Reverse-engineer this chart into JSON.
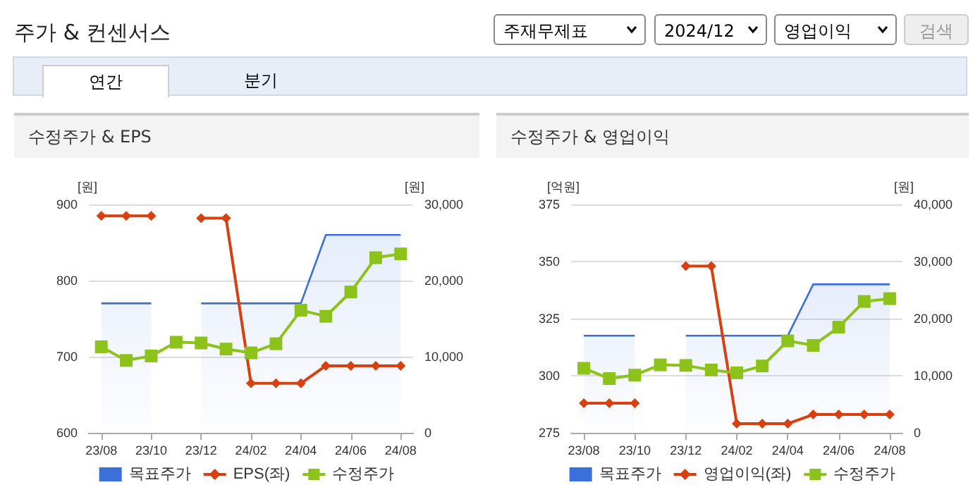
{
  "chart_data": [
    {
      "type": "other",
      "title": "주가 & 컨센서스",
      "annotations": [
        "주재무제표",
        "2024/12",
        "영업이익",
        "검색",
        "연간",
        "분기"
      ]
    },
    {
      "type": "line",
      "title": "수정주가 & EPS",
      "ylabel": "[원]",
      "y2label": "[원]",
      "categories": [
        "23/08",
        null,
        "23/10",
        null,
        "23/12",
        null,
        "24/02",
        null,
        "24/04",
        null,
        "24/06",
        null,
        "24/08"
      ],
      "series": [
        {
          "name": "목표주가",
          "type": "area",
          "axis": "y2",
          "color": "#3b6fd9",
          "marker": "none",
          "values": [
            17000,
            17000,
            17000,
            null,
            17000,
            17000,
            17000,
            17000,
            17000,
            26000,
            26000,
            26000,
            26000
          ]
        },
        {
          "name": "EPS(좌)",
          "type": "line",
          "axis": "y",
          "color": "#d9400f",
          "marker": "diamond",
          "values": [
            885,
            885,
            885,
            null,
            882,
            882,
            665,
            665,
            665,
            688,
            688,
            688,
            688
          ]
        },
        {
          "name": "수정주가",
          "type": "line",
          "axis": "y2",
          "color": "#8cc21a",
          "marker": "square",
          "values": [
            11300,
            9500,
            10100,
            11900,
            11800,
            11000,
            10500,
            11700,
            16100,
            15300,
            18500,
            23000,
            23500
          ]
        }
      ],
      "ylim": [
        600,
        900
      ],
      "yticks": [
        600,
        700,
        800,
        900
      ],
      "y2lim": [
        0,
        30000
      ],
      "y2ticks": [
        0,
        {
          "value": 10000,
          "label": "10,000"
        },
        {
          "value": 20000,
          "label": "20,000"
        },
        {
          "value": 30000,
          "label": "30,000"
        }
      ],
      "grid": "y",
      "legend": "bottom"
    },
    {
      "type": "line",
      "title": "수정주가 & 영업이익",
      "ylabel": "[억원]",
      "y2label": "[원]",
      "categories": [
        "23/08",
        null,
        "23/10",
        null,
        "23/12",
        null,
        "24/02",
        null,
        "24/04",
        null,
        "24/06",
        null,
        "24/08"
      ],
      "series": [
        {
          "name": "목표주가",
          "type": "area",
          "axis": "y2",
          "color": "#3b6fd9",
          "marker": "none",
          "values": [
            17000,
            17000,
            17000,
            null,
            17000,
            17000,
            17000,
            17000,
            17000,
            26000,
            26000,
            26000,
            26000
          ]
        },
        {
          "name": "영업이익(좌)",
          "type": "line",
          "axis": "y",
          "color": "#d9400f",
          "marker": "diamond",
          "values": [
            288,
            288,
            288,
            null,
            348,
            348,
            279,
            279,
            279,
            283,
            283,
            283,
            283
          ]
        },
        {
          "name": "수정주가",
          "type": "line",
          "axis": "y2",
          "color": "#8cc21a",
          "marker": "square",
          "values": [
            11300,
            9500,
            10100,
            11900,
            11800,
            11000,
            10500,
            11700,
            16100,
            15300,
            18500,
            23000,
            23500
          ]
        }
      ],
      "ylim": [
        275,
        375
      ],
      "yticks": [
        275,
        300,
        325,
        350,
        375
      ],
      "y2lim": [
        0,
        40000
      ],
      "y2ticks": [
        0,
        {
          "value": 10000,
          "label": "10,000"
        },
        {
          "value": 20000,
          "label": "20,000"
        },
        {
          "value": 30000,
          "label": "30,000"
        },
        {
          "value": 40000,
          "label": "40,000"
        }
      ],
      "grid": "y",
      "legend": "bottom"
    }
  ]
}
